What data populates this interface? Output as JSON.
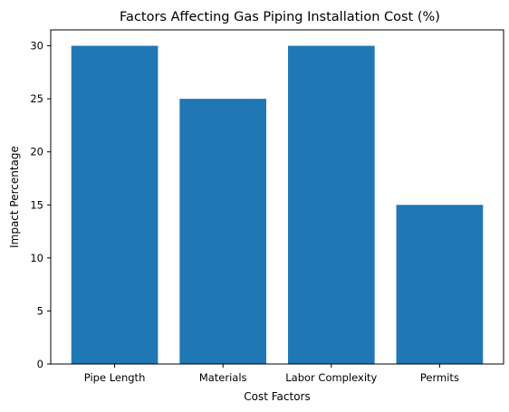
{
  "chart_data": {
    "type": "bar",
    "title": "Factors Affecting Gas Piping Installation Cost (%)",
    "xlabel": "Cost Factors",
    "ylabel": "Impact Percentage",
    "categories": [
      "Pipe Length",
      "Materials",
      "Labor Complexity",
      "Permits"
    ],
    "values": [
      30,
      25,
      30,
      15
    ],
    "ylim": [
      0,
      31.5
    ],
    "yticks": [
      0,
      5,
      10,
      15,
      20,
      25,
      30
    ],
    "bar_color": "#1f77b4",
    "grid": false,
    "legend": "none"
  }
}
